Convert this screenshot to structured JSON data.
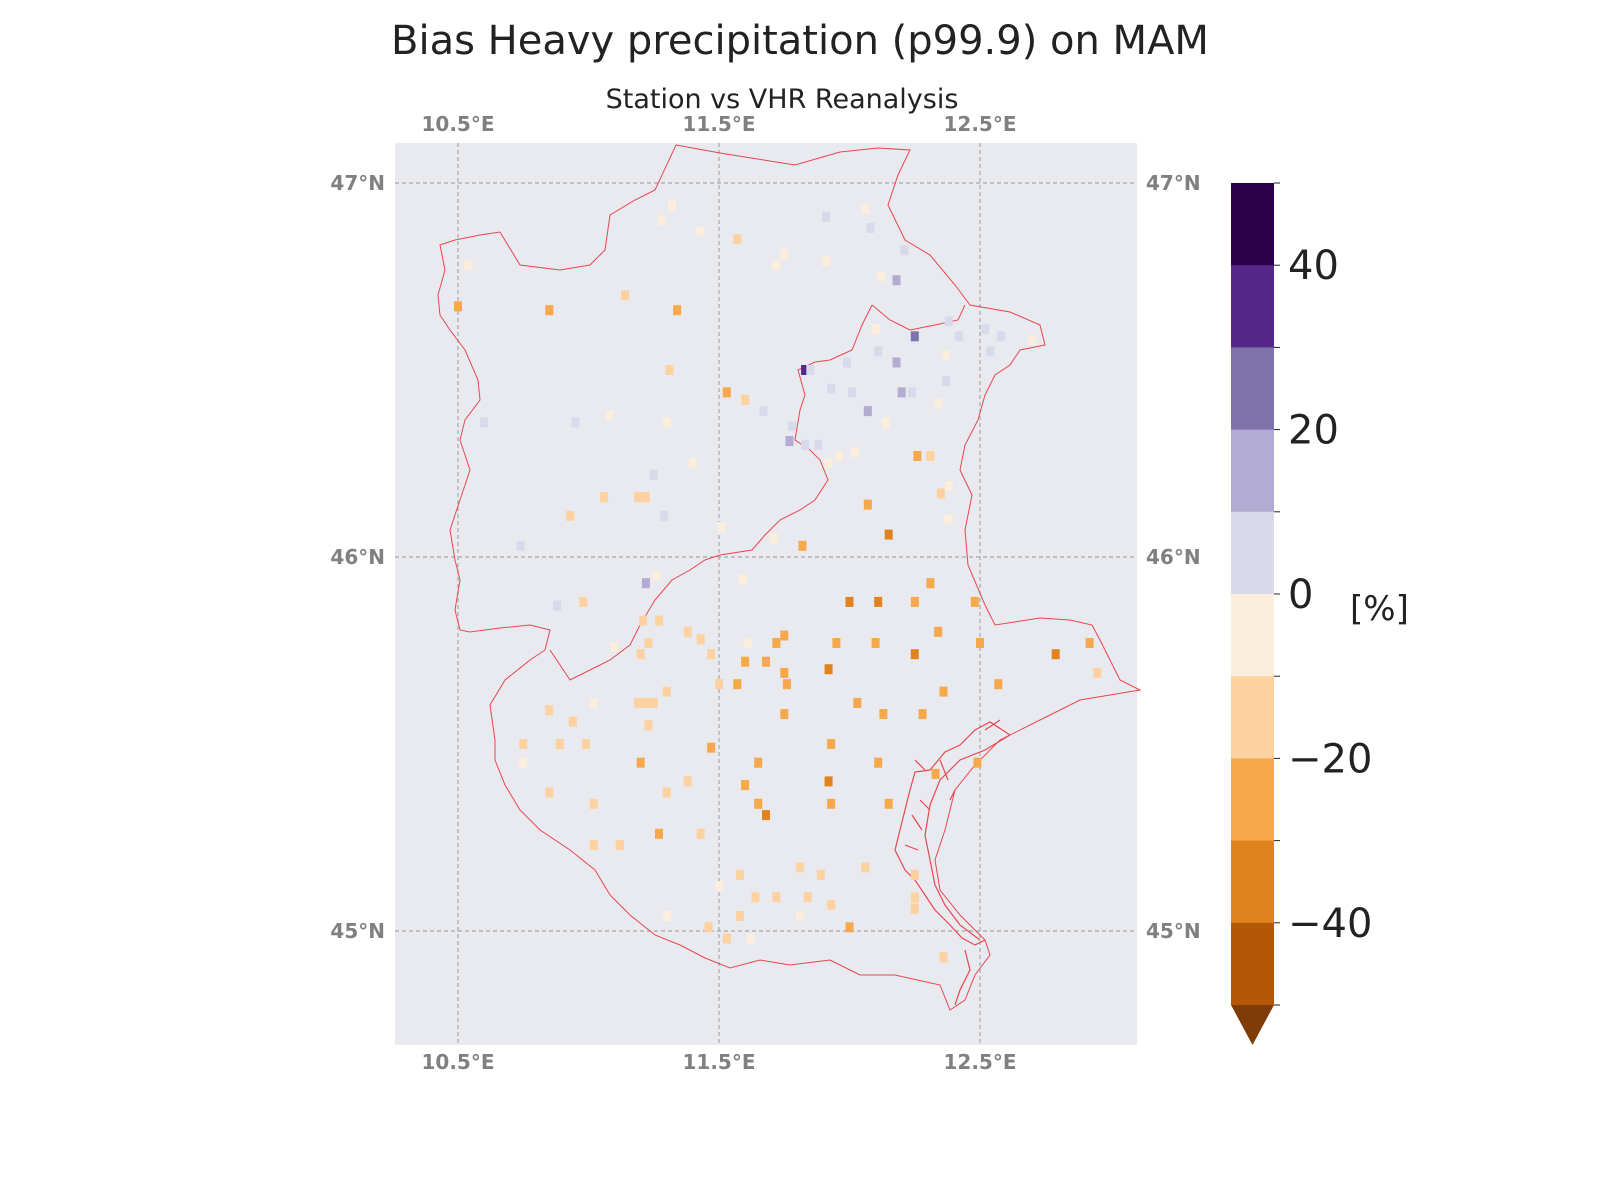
{
  "title": "Bias Heavy precipitation (p99.9) on MAM",
  "subtitle": "Station vs VHR Reanalysis",
  "map": {
    "lon_range": [
      10.25,
      13.1
    ],
    "lat_range": [
      44.7,
      47.1
    ],
    "background": "#e9e9f0",
    "gridlines": true,
    "lon_ticks": [
      10.5,
      11.5,
      12.5
    ],
    "lat_ticks": [
      45,
      46,
      47
    ],
    "lon_tick_labels": [
      "10.5°E",
      "11.5°E",
      "12.5°E"
    ],
    "lat_tick_labels": [
      "45°N",
      "46°N",
      "47°N"
    ],
    "boundary_color": "#e8474f"
  },
  "colorbar": {
    "unit_label": "[%]",
    "tick_values": [
      40,
      20,
      0,
      -20,
      -40
    ],
    "tick_labels": [
      "40",
      "20",
      "0",
      "−20",
      "−40"
    ],
    "levels": [
      50,
      40,
      30,
      20,
      10,
      0,
      -10,
      -20,
      -30,
      -40,
      -50
    ],
    "colors": [
      "#2d004b",
      "#542788",
      "#8073ac",
      "#b2abd2",
      "#d8daeb",
      "#fbeedc",
      "#fdd2a0",
      "#f6a84a",
      "#e0821e",
      "#b35806"
    ],
    "extend_color": "#7f3b08",
    "extend": "min"
  },
  "chart_data": {
    "type": "heatmap",
    "title": "Bias Heavy precipitation (p99.9) on MAM",
    "subtitle": "Station vs VHR Reanalysis",
    "unit": "[%]",
    "points": [
      {
        "lon": 10.85,
        "lat": 46.66,
        "v": -27
      },
      {
        "lon": 11.34,
        "lat": 46.66,
        "v": -27
      },
      {
        "lon": 10.5,
        "lat": 46.67,
        "v": -22
      },
      {
        "lon": 10.54,
        "lat": 46.78,
        "v": -8
      },
      {
        "lon": 11.14,
        "lat": 46.7,
        "v": -15
      },
      {
        "lon": 11.57,
        "lat": 46.85,
        "v": -15
      },
      {
        "lon": 11.32,
        "lat": 46.94,
        "v": -8
      },
      {
        "lon": 11.28,
        "lat": 46.9,
        "v": -5
      },
      {
        "lon": 11.43,
        "lat": 46.87,
        "v": -5
      },
      {
        "lon": 11.75,
        "lat": 46.81,
        "v": -8
      },
      {
        "lon": 11.72,
        "lat": 46.78,
        "v": -5
      },
      {
        "lon": 11.91,
        "lat": 46.91,
        "v": 5
      },
      {
        "lon": 11.91,
        "lat": 46.79,
        "v": -5
      },
      {
        "lon": 12.06,
        "lat": 46.93,
        "v": -5
      },
      {
        "lon": 12.08,
        "lat": 46.88,
        "v": 5
      },
      {
        "lon": 12.21,
        "lat": 46.82,
        "v": 5
      },
      {
        "lon": 12.18,
        "lat": 46.74,
        "v": 15
      },
      {
        "lon": 12.12,
        "lat": 46.75,
        "v": -5
      },
      {
        "lon": 12.38,
        "lat": 46.63,
        "v": 5
      },
      {
        "lon": 12.42,
        "lat": 46.59,
        "v": 5
      },
      {
        "lon": 12.52,
        "lat": 46.61,
        "v": 5
      },
      {
        "lon": 12.54,
        "lat": 46.55,
        "v": 5
      },
      {
        "lon": 12.58,
        "lat": 46.59,
        "v": 5
      },
      {
        "lon": 12.7,
        "lat": 46.58,
        "v": -8
      },
      {
        "lon": 12.37,
        "lat": 46.54,
        "v": -5
      },
      {
        "lon": 12.25,
        "lat": 46.59,
        "v": 25
      },
      {
        "lon": 12.11,
        "lat": 46.55,
        "v": 5
      },
      {
        "lon": 12.18,
        "lat": 46.52,
        "v": 15
      },
      {
        "lon": 12.1,
        "lat": 46.61,
        "v": -5
      },
      {
        "lon": 11.83,
        "lat": 46.5,
        "v": 35
      },
      {
        "lon": 11.85,
        "lat": 46.5,
        "v": 5
      },
      {
        "lon": 11.93,
        "lat": 46.45,
        "v": 5
      },
      {
        "lon": 11.99,
        "lat": 46.52,
        "v": 5
      },
      {
        "lon": 12.01,
        "lat": 46.44,
        "v": 5
      },
      {
        "lon": 12.07,
        "lat": 46.39,
        "v": 15
      },
      {
        "lon": 12.2,
        "lat": 46.44,
        "v": 15
      },
      {
        "lon": 12.24,
        "lat": 46.44,
        "v": 5
      },
      {
        "lon": 12.37,
        "lat": 46.47,
        "v": 5
      },
      {
        "lon": 12.34,
        "lat": 46.41,
        "v": -8
      },
      {
        "lon": 11.53,
        "lat": 46.44,
        "v": -22
      },
      {
        "lon": 11.6,
        "lat": 46.42,
        "v": -15
      },
      {
        "lon": 11.67,
        "lat": 46.39,
        "v": 5
      },
      {
        "lon": 11.78,
        "lat": 46.35,
        "v": 5
      },
      {
        "lon": 11.77,
        "lat": 46.31,
        "v": 15
      },
      {
        "lon": 11.83,
        "lat": 46.3,
        "v": 5
      },
      {
        "lon": 11.88,
        "lat": 46.3,
        "v": 5
      },
      {
        "lon": 11.96,
        "lat": 46.27,
        "v": -5
      },
      {
        "lon": 12.14,
        "lat": 46.36,
        "v": -5
      },
      {
        "lon": 12.26,
        "lat": 46.27,
        "v": -22
      },
      {
        "lon": 12.31,
        "lat": 46.27,
        "v": -15
      },
      {
        "lon": 11.31,
        "lat": 46.5,
        "v": -15
      },
      {
        "lon": 11.3,
        "lat": 46.36,
        "v": -5
      },
      {
        "lon": 11.08,
        "lat": 46.38,
        "v": -5
      },
      {
        "lon": 10.6,
        "lat": 46.36,
        "v": 5
      },
      {
        "lon": 10.95,
        "lat": 46.36,
        "v": 5
      },
      {
        "lon": 11.25,
        "lat": 46.22,
        "v": 5
      },
      {
        "lon": 11.29,
        "lat": 46.11,
        "v": 5
      },
      {
        "lon": 11.22,
        "lat": 46.16,
        "v": -15
      },
      {
        "lon": 11.19,
        "lat": 46.16,
        "v": -15
      },
      {
        "lon": 11.06,
        "lat": 46.16,
        "v": -15
      },
      {
        "lon": 10.93,
        "lat": 46.11,
        "v": -15
      },
      {
        "lon": 11.4,
        "lat": 46.25,
        "v": -8
      },
      {
        "lon": 11.51,
        "lat": 46.08,
        "v": -5
      },
      {
        "lon": 11.71,
        "lat": 46.05,
        "v": -8
      },
      {
        "lon": 11.82,
        "lat": 46.03,
        "v": -22
      },
      {
        "lon": 11.92,
        "lat": 46.25,
        "v": -8
      },
      {
        "lon": 12.02,
        "lat": 46.28,
        "v": -5
      },
      {
        "lon": 12.07,
        "lat": 46.14,
        "v": -27
      },
      {
        "lon": 12.15,
        "lat": 46.06,
        "v": -35
      },
      {
        "lon": 12.35,
        "lat": 46.17,
        "v": -15
      },
      {
        "lon": 12.38,
        "lat": 46.1,
        "v": -8
      },
      {
        "lon": 12.38,
        "lat": 46.19,
        "v": -8
      },
      {
        "lon": 10.74,
        "lat": 46.03,
        "v": 5
      },
      {
        "lon": 10.88,
        "lat": 45.87,
        "v": 5
      },
      {
        "lon": 11.22,
        "lat": 45.93,
        "v": 15
      },
      {
        "lon": 11.21,
        "lat": 45.83,
        "v": -15
      },
      {
        "lon": 11.23,
        "lat": 45.77,
        "v": -15
      },
      {
        "lon": 11.27,
        "lat": 45.83,
        "v": -15
      },
      {
        "lon": 11.38,
        "lat": 45.8,
        "v": -15
      },
      {
        "lon": 11.43,
        "lat": 45.78,
        "v": -15
      },
      {
        "lon": 10.98,
        "lat": 45.88,
        "v": -15
      },
      {
        "lon": 11.26,
        "lat": 45.95,
        "v": -8
      },
      {
        "lon": 11.59,
        "lat": 45.94,
        "v": -8
      },
      {
        "lon": 12.0,
        "lat": 45.88,
        "v": -35
      },
      {
        "lon": 12.11,
        "lat": 45.88,
        "v": -35
      },
      {
        "lon": 12.25,
        "lat": 45.88,
        "v": -27
      },
      {
        "lon": 12.31,
        "lat": 45.93,
        "v": -22
      },
      {
        "lon": 12.48,
        "lat": 45.88,
        "v": -27
      },
      {
        "lon": 11.61,
        "lat": 45.77,
        "v": -8
      },
      {
        "lon": 11.72,
        "lat": 45.77,
        "v": -22
      },
      {
        "lon": 11.75,
        "lat": 45.79,
        "v": -22
      },
      {
        "lon": 11.95,
        "lat": 45.77,
        "v": -22
      },
      {
        "lon": 12.1,
        "lat": 45.77,
        "v": -22
      },
      {
        "lon": 12.25,
        "lat": 45.74,
        "v": -35
      },
      {
        "lon": 12.34,
        "lat": 45.8,
        "v": -22
      },
      {
        "lon": 12.5,
        "lat": 45.77,
        "v": -22
      },
      {
        "lon": 12.79,
        "lat": 45.74,
        "v": -35
      },
      {
        "lon": 12.92,
        "lat": 45.77,
        "v": -22
      },
      {
        "lon": 12.95,
        "lat": 45.69,
        "v": -15
      },
      {
        "lon": 11.47,
        "lat": 45.74,
        "v": -15
      },
      {
        "lon": 11.6,
        "lat": 45.72,
        "v": -22
      },
      {
        "lon": 11.68,
        "lat": 45.72,
        "v": -22
      },
      {
        "lon": 11.75,
        "lat": 45.69,
        "v": -22
      },
      {
        "lon": 11.92,
        "lat": 45.7,
        "v": -35
      },
      {
        "lon": 11.5,
        "lat": 45.66,
        "v": -15
      },
      {
        "lon": 11.57,
        "lat": 45.66,
        "v": -22
      },
      {
        "lon": 11.76,
        "lat": 45.66,
        "v": -22
      },
      {
        "lon": 12.57,
        "lat": 45.66,
        "v": -22
      },
      {
        "lon": 12.36,
        "lat": 45.64,
        "v": -22
      },
      {
        "lon": 12.03,
        "lat": 45.61,
        "v": -22
      },
      {
        "lon": 11.1,
        "lat": 45.76,
        "v": -8
      },
      {
        "lon": 11.2,
        "lat": 45.74,
        "v": -15
      },
      {
        "lon": 11.3,
        "lat": 45.64,
        "v": -15
      },
      {
        "lon": 11.22,
        "lat": 45.61,
        "v": -15
      },
      {
        "lon": 11.19,
        "lat": 45.61,
        "v": -15
      },
      {
        "lon": 11.25,
        "lat": 45.61,
        "v": -15
      },
      {
        "lon": 11.23,
        "lat": 45.55,
        "v": -15
      },
      {
        "lon": 11.02,
        "lat": 45.61,
        "v": -8
      },
      {
        "lon": 10.94,
        "lat": 45.56,
        "v": -15
      },
      {
        "lon": 10.85,
        "lat": 45.59,
        "v": -15
      },
      {
        "lon": 10.75,
        "lat": 45.5,
        "v": -15
      },
      {
        "lon": 10.89,
        "lat": 45.5,
        "v": -15
      },
      {
        "lon": 10.99,
        "lat": 45.5,
        "v": -15
      },
      {
        "lon": 10.75,
        "lat": 45.45,
        "v": -8
      },
      {
        "lon": 11.75,
        "lat": 45.58,
        "v": -22
      },
      {
        "lon": 12.13,
        "lat": 45.58,
        "v": -22
      },
      {
        "lon": 12.28,
        "lat": 45.58,
        "v": -22
      },
      {
        "lon": 11.47,
        "lat": 45.49,
        "v": -27
      },
      {
        "lon": 11.93,
        "lat": 45.5,
        "v": -22
      },
      {
        "lon": 11.2,
        "lat": 45.45,
        "v": -27
      },
      {
        "lon": 11.65,
        "lat": 45.45,
        "v": -22
      },
      {
        "lon": 12.11,
        "lat": 45.45,
        "v": -22
      },
      {
        "lon": 12.33,
        "lat": 45.42,
        "v": -22
      },
      {
        "lon": 12.49,
        "lat": 45.45,
        "v": -22
      },
      {
        "lon": 10.85,
        "lat": 45.37,
        "v": -15
      },
      {
        "lon": 11.3,
        "lat": 45.37,
        "v": -15
      },
      {
        "lon": 11.38,
        "lat": 45.4,
        "v": -15
      },
      {
        "lon": 11.6,
        "lat": 45.39,
        "v": -22
      },
      {
        "lon": 11.92,
        "lat": 45.4,
        "v": -35
      },
      {
        "lon": 11.02,
        "lat": 45.34,
        "v": -15
      },
      {
        "lon": 11.65,
        "lat": 45.34,
        "v": -22
      },
      {
        "lon": 11.68,
        "lat": 45.31,
        "v": -35
      },
      {
        "lon": 11.93,
        "lat": 45.34,
        "v": -22
      },
      {
        "lon": 12.15,
        "lat": 45.34,
        "v": -22
      },
      {
        "lon": 11.27,
        "lat": 45.26,
        "v": -27
      },
      {
        "lon": 11.43,
        "lat": 45.26,
        "v": -15
      },
      {
        "lon": 11.02,
        "lat": 45.23,
        "v": -15
      },
      {
        "lon": 11.12,
        "lat": 45.23,
        "v": -15
      },
      {
        "lon": 11.81,
        "lat": 45.17,
        "v": -15
      },
      {
        "lon": 11.89,
        "lat": 45.15,
        "v": -15
      },
      {
        "lon": 12.06,
        "lat": 45.17,
        "v": -15
      },
      {
        "lon": 11.58,
        "lat": 45.15,
        "v": -15
      },
      {
        "lon": 11.5,
        "lat": 45.12,
        "v": -8
      },
      {
        "lon": 12.25,
        "lat": 45.15,
        "v": -15
      },
      {
        "lon": 11.64,
        "lat": 45.09,
        "v": -15
      },
      {
        "lon": 11.72,
        "lat": 45.09,
        "v": -15
      },
      {
        "lon": 11.84,
        "lat": 45.09,
        "v": -15
      },
      {
        "lon": 11.93,
        "lat": 45.07,
        "v": -15
      },
      {
        "lon": 12.25,
        "lat": 45.09,
        "v": -15
      },
      {
        "lon": 12.25,
        "lat": 45.06,
        "v": -15
      },
      {
        "lon": 11.58,
        "lat": 45.04,
        "v": -15
      },
      {
        "lon": 11.81,
        "lat": 45.04,
        "v": -8
      },
      {
        "lon": 11.3,
        "lat": 45.04,
        "v": -8
      },
      {
        "lon": 11.46,
        "lat": 45.01,
        "v": -15
      },
      {
        "lon": 12.0,
        "lat": 45.01,
        "v": -22
      },
      {
        "lon": 11.53,
        "lat": 44.98,
        "v": -15
      },
      {
        "lon": 11.62,
        "lat": 44.98,
        "v": -8
      },
      {
        "lon": 12.36,
        "lat": 44.93,
        "v": -15
      }
    ]
  }
}
